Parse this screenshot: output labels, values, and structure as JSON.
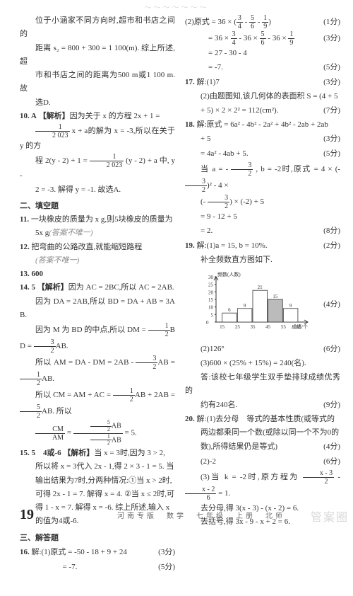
{
  "top_decoration": "～～～～～～～",
  "left_col": {
    "p1": "位于小涵家不同方向时,超市和书店之间的",
    "p2": "距离 s₂ = 800 + 300 = 1 100(m). 综上所述,超",
    "p3": "市和书店之间的距离为500 m或1 100 m. 故",
    "p4": "选D.",
    "q10_label": "10. A",
    "q10_hint": "【解析】",
    "q10_a": "因为关于 x 的方程 2x + 1 =",
    "q10_b": " x + a的解为 x = -3,所以在关于 y 的方",
    "frac_2023": {
      "n": "1",
      "d": "2 023"
    },
    "q10_c": "程 2(y - 2) + 1 = ",
    "q10_d": " (y - 2) + a 中, y -",
    "q10_e": "2 = -3. 解得 y = -1. 故选A.",
    "sec2": "二、填空题",
    "q11_label": "11.",
    "q11_a": "一块橡皮的质量为 x g,则5块橡皮的质量为",
    "q11_b": "5x g",
    "q11_c": "(答案不唯一)",
    "q12_label": "12.",
    "q12_a": "把弯曲的公路改直,就能缩短路程",
    "q12_b": "(答案不唯一)",
    "q13": "13. 600",
    "q14_label": "14. 5",
    "q14_hint": "【解析】",
    "q14_a": "因为 AC = 2BC,所以 AC = 2AB.",
    "q14_b": "因为 DA = 2AB,所以 BD = DA + AB = 3AB.",
    "q14_c": "因为 M 为 BD 的中点,所以 DM = ",
    "frac_12": {
      "n": "1",
      "d": "2"
    },
    "q14_c2": "BD = ",
    "frac_32": {
      "n": "3",
      "d": "2"
    },
    "q14_c3": "AB.",
    "q14_d": "所以 AM = DA - DM = 2AB - ",
    "q14_d2": "AB = ",
    "q14_d3": "AB.",
    "q14_e": "所以 CM = AM + AC = ",
    "q14_e2": "AB + 2AB = ",
    "frac_52": {
      "n": "5",
      "d": "2"
    },
    "q14_e3": "AB. 所以",
    "q14_f_lhs": "CM",
    "q14_f_lhs2": "AM",
    "q14_f_num": "AB",
    "q14_f_den": "AB",
    "q14_f_eq": " = 5.",
    "q15_label": "15. 5　4或-6",
    "q15_hint": "【解析】",
    "q15_a": "当 x = 3时,因为 3 > 2,",
    "q15_b": "所以将 x = 3代入 2x - 1,得 2 × 3 - 1 = 5. 当",
    "q15_c": "输出结果为7时,分两种情况:①当 x > 2时,",
    "q15_d": "可得 2x - 1 = 7. 解得 x = 4. ②当 x ≤ 2时,可",
    "q15_e": "得 1 - x = 7. 解得 x = -6. 综上所述,输入 x",
    "q15_f": "的值为4或-6.",
    "sec3": "三、解答题",
    "q16_label": "16.",
    "q16_a": "解:(1)原式 = -50 - 18 + 9 + 24",
    "q16_s1": "(3分)",
    "q16_b": "= -7.",
    "q16_s2": "(5分)"
  },
  "right_col": {
    "r1_a": "(2)原式 = 36 × ",
    "r1_paren": "( ",
    "r1_frac34": {
      "n": "3",
      "d": "4"
    },
    "r1_minus": " - ",
    "r1_frac56": {
      "n": "5",
      "d": "6"
    },
    "r1_frac19": {
      "n": "1",
      "d": "9"
    },
    "r1_paren2": " )",
    "r1_s": "(1分)",
    "r2_a": "= 36 × ",
    "r2_b": " - 36 × ",
    "r2_c": " - 36 × ",
    "r2_s": "(3分)",
    "r3": "= 27 - 30 - 4",
    "r4": "= -7.",
    "r4_s": "(5分)",
    "q17_label": "17.",
    "q17_a": "解:(1)7",
    "q17_s1": "(3分)",
    "q17_b": "(2)由题图知,该几何体的表面积 S = (4 + 5",
    "q17_c": "+ 5) × 2 × 2² = 112(cm²).",
    "q17_s2": "(7分)",
    "q18_label": "18.",
    "q18_a": "解:原式 = 6a² - 4b² - 2a² + 4b² - 2ab + 2ab",
    "q18_a2": "+ 5",
    "q18_s1": "(3分)",
    "q18_b": "= 4a² - 4ab + 5.",
    "q18_s2": "(5分)",
    "q18_c": "当 a = - ",
    "q18_frac32": {
      "n": "3",
      "d": "2"
    },
    "q18_c2": " , b = -2时,原式 = 4 × ",
    "q18_c3": "² - 4 ×",
    "q18_d": " × (-2) + 5",
    "q18_e": "= 9 - 12 + 5",
    "q18_f": "= 2.",
    "q18_s3": "(8分)",
    "q19_label": "19.",
    "q19_a": "解:(1)a = 15, b = 10%.",
    "q19_s1": "(2分)",
    "q19_b": "补全频数直方图如下.",
    "chart": {
      "ylabel": "频数(人数)",
      "xlabel": "成绩/个",
      "yticks": [
        0,
        5,
        10,
        15,
        20,
        25,
        30
      ],
      "xticks": [
        15,
        25,
        35,
        45,
        55,
        65
      ],
      "bars": [
        6,
        9,
        21,
        15,
        9
      ],
      "highlight_index": 3,
      "bar_color": "#ffffff",
      "bar_border": "#333333",
      "highlight_fill": "#bbbbbb",
      "width": 160,
      "height": 90
    },
    "q19_chart_s": "(4分)",
    "q19_c": "(2)126°",
    "q19_s2": "(6分)",
    "q19_d": "(3)600 × (25% + 15%) = 240(名).",
    "q19_e": "答:该校七年级学生双手垫排球成绩优秀的",
    "q19_f": "约有240名.",
    "q19_s3": "(9分)",
    "q20_label": "20.",
    "q20_a": "解:(1)去分母　等式的基本性质(或等式的",
    "q20_b": "两边都乘同一个数(或除以同一个不为0的",
    "q20_c": "数),所得结果仍是等式)",
    "q20_s1": "(4分)",
    "q20_d": "(2)-2",
    "q20_s2": "(6分)",
    "q20_e": "(3)当 k = -2时,原方程为 ",
    "q20_frac_l": {
      "n": "x - 3",
      "d": "2"
    },
    "q20_e2": " - ",
    "q20_frac_r": {
      "n": "x - 2",
      "d": "6"
    },
    "q20_e3": " = 1.",
    "q20_f": "去分母,得 3(x - 3) - (x - 2) = 6.",
    "q20_g": "去括号,得 3x - 9 - x + 2 = 6."
  },
  "footer": {
    "page_num": "19",
    "text": "河南专版　数学　七年级　上册　北师"
  },
  "watermark": "管案圈"
}
